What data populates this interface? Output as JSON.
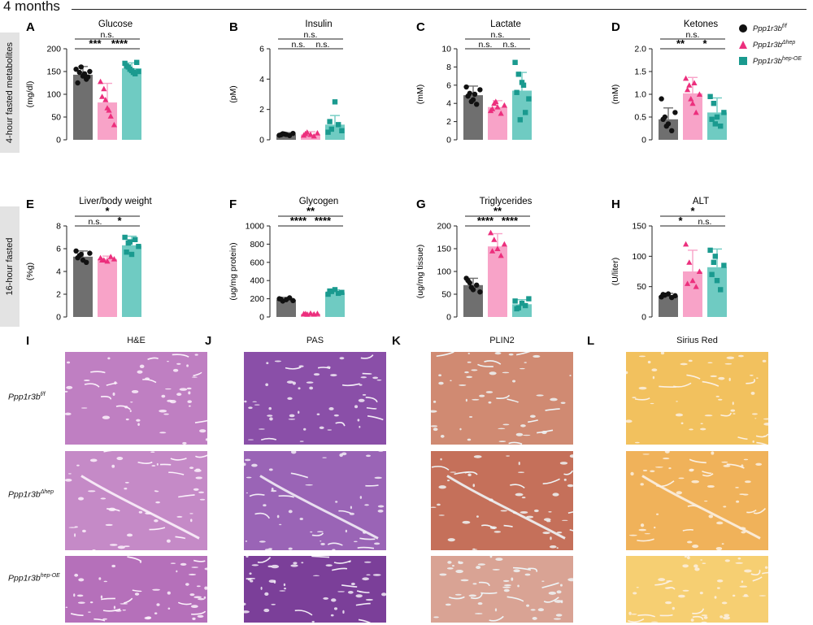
{
  "header": {
    "title": "4 months"
  },
  "row_labels": [
    "4-hour fasted metabolites",
    "16-hour fasted"
  ],
  "legend": [
    {
      "base": "Ppp1r3b",
      "sup": "f/f",
      "shape": "circle",
      "color": "#111111"
    },
    {
      "base": "Ppp1r3b",
      "sup": "Δhep",
      "shape": "triangle",
      "color": "#ec2f7d"
    },
    {
      "base": "Ppp1r3b",
      "sup": "hep-OE",
      "shape": "square",
      "color": "#1a9a8f"
    }
  ],
  "colors": {
    "bar1": "#6f6f6f",
    "bar2": "#f8a3c8",
    "bar3": "#6fcbc2",
    "dot1": "#111111",
    "dot2": "#ec2f7d",
    "dot3": "#1a9a8f"
  },
  "chart_data": [
    {
      "letter": "A",
      "title": "Glucose",
      "ylabel": "(mg/dl)",
      "type": "bar",
      "categories": [
        "f/f",
        "Δhep",
        "hep-OE"
      ],
      "values": [
        143,
        82,
        157
      ],
      "errors": [
        18,
        42,
        12
      ],
      "ylim": [
        0,
        200
      ],
      "yticks": [
        "0",
        "50",
        "100",
        "150",
        "200"
      ],
      "points": [
        [
          155,
          148,
          140,
          133,
          150,
          125,
          160,
          145,
          138
        ],
        [
          128,
          112,
          70,
          52,
          33,
          95,
          88,
          65
        ],
        [
          168,
          160,
          152,
          145,
          150,
          162,
          155,
          148,
          170
        ]
      ],
      "sig": [
        {
          "a": 0,
          "b": 2,
          "label": "n.s.",
          "level": 1
        },
        {
          "a": 0,
          "b": 1,
          "label": "***",
          "level": 0
        },
        {
          "a": 1,
          "b": 2,
          "label": "****",
          "level": 0
        }
      ]
    },
    {
      "letter": "B",
      "title": "Insulin",
      "ylabel": "(pM)",
      "type": "bar",
      "categories": [
        "f/f",
        "Δhep",
        "hep-OE"
      ],
      "values": [
        0.35,
        0.35,
        1.0
      ],
      "errors": [
        0.12,
        0.18,
        0.6
      ],
      "ylim": [
        0,
        6
      ],
      "yticks": [
        "0",
        "2",
        "4",
        "6"
      ],
      "points": [
        [
          0.3,
          0.4,
          0.35,
          0.28,
          0.42,
          0.33,
          0.38
        ],
        [
          0.3,
          0.5,
          0.35,
          0.25,
          0.45,
          0.4
        ],
        [
          0.5,
          0.7,
          2.5,
          1.0,
          0.6,
          1.2
        ]
      ],
      "sig": [
        {
          "a": 0,
          "b": 2,
          "label": "n.s.",
          "level": 1
        },
        {
          "a": 0,
          "b": 1,
          "label": "n.s.",
          "level": 0
        },
        {
          "a": 1,
          "b": 2,
          "label": "n.s.",
          "level": 0
        }
      ]
    },
    {
      "letter": "C",
      "title": "Lactate",
      "ylabel": "(mM)",
      "type": "bar",
      "categories": [
        "f/f",
        "Δhep",
        "hep-OE"
      ],
      "values": [
        4.9,
        3.6,
        5.4
      ],
      "errors": [
        1.0,
        0.7,
        2.0
      ],
      "ylim": [
        0,
        10
      ],
      "yticks": [
        "0",
        "2",
        "4",
        "6",
        "8",
        "10"
      ],
      "points": [
        [
          5.8,
          5.1,
          4.4,
          3.9,
          5.5,
          4.8,
          4.2,
          5.0
        ],
        [
          3.2,
          4.0,
          3.6,
          2.9,
          3.8,
          3.4,
          4.2
        ],
        [
          8.5,
          7.2,
          6.3,
          3.0,
          4.5,
          5.2,
          2.2,
          6.0
        ]
      ],
      "sig": [
        {
          "a": 0,
          "b": 2,
          "label": "n.s.",
          "level": 1
        },
        {
          "a": 0,
          "b": 1,
          "label": "n.s.",
          "level": 0
        },
        {
          "a": 1,
          "b": 2,
          "label": "n.s.",
          "level": 0
        }
      ]
    },
    {
      "letter": "D",
      "title": "Ketones",
      "ylabel": "(mM)",
      "type": "bar",
      "categories": [
        "f/f",
        "Δhep",
        "hep-OE"
      ],
      "values": [
        0.45,
        1.02,
        0.6
      ],
      "errors": [
        0.25,
        0.35,
        0.32
      ],
      "ylim": [
        0,
        2
      ],
      "yticks": [
        "0",
        "0.5",
        "1.0",
        "1.5",
        "2.0"
      ],
      "points": [
        [
          0.9,
          0.5,
          0.35,
          0.2,
          0.6,
          0.45,
          0.3
        ],
        [
          1.35,
          1.2,
          0.8,
          0.6,
          1.0,
          1.1,
          0.9,
          1.25
        ],
        [
          0.95,
          0.8,
          0.5,
          0.3,
          0.6,
          0.45,
          0.35
        ]
      ],
      "sig": [
        {
          "a": 0,
          "b": 2,
          "label": "n.s.",
          "level": 1
        },
        {
          "a": 0,
          "b": 1,
          "label": "**",
          "level": 0
        },
        {
          "a": 1,
          "b": 2,
          "label": "*",
          "level": 0
        }
      ]
    },
    {
      "letter": "E",
      "title": "Liver/body weight",
      "ylabel": "(%g)",
      "type": "bar",
      "categories": [
        "f/f",
        "Δhep",
        "hep-OE"
      ],
      "values": [
        5.3,
        5.1,
        6.3
      ],
      "errors": [
        0.5,
        0.25,
        0.8
      ],
      "ylim": [
        0,
        8
      ],
      "yticks": [
        "0",
        "2",
        "4",
        "6",
        "8"
      ],
      "points": [
        [
          5.8,
          5.4,
          5.0,
          4.8,
          5.6,
          5.2,
          5.5
        ],
        [
          5.2,
          5.0,
          4.9,
          5.3,
          5.1,
          5.0
        ],
        [
          7.0,
          6.5,
          5.5,
          6.8,
          6.2,
          5.7,
          6.6
        ]
      ],
      "sig": [
        {
          "a": 0,
          "b": 2,
          "label": "*",
          "level": 1
        },
        {
          "a": 0,
          "b": 1,
          "label": "n.s.",
          "level": 0
        },
        {
          "a": 1,
          "b": 2,
          "label": "*",
          "level": 0
        }
      ]
    },
    {
      "letter": "F",
      "title": "Glycogen",
      "ylabel": "(ug/mg protein)",
      "type": "bar",
      "categories": [
        "f/f",
        "Δhep",
        "hep-OE"
      ],
      "values": [
        190,
        35,
        270
      ],
      "errors": [
        25,
        8,
        28
      ],
      "ylim": [
        0,
        1000
      ],
      "yticks": [
        "0",
        "200",
        "400",
        "600",
        "800",
        "1000"
      ],
      "points": [
        [
          200,
          175,
          190,
          210,
          180,
          195
        ],
        [
          35,
          30,
          40,
          32,
          38,
          36
        ],
        [
          250,
          280,
          300,
          260,
          270,
          285
        ]
      ],
      "sig": [
        {
          "a": 0,
          "b": 2,
          "label": "**",
          "level": 1
        },
        {
          "a": 0,
          "b": 1,
          "label": "****",
          "level": 0
        },
        {
          "a": 1,
          "b": 2,
          "label": "****",
          "level": 0
        }
      ]
    },
    {
      "letter": "G",
      "title": "Triglycerides",
      "ylabel": "(ug/mg tissue)",
      "type": "bar",
      "categories": [
        "f/f",
        "Δhep",
        "hep-OE"
      ],
      "values": [
        70,
        155,
        28
      ],
      "errors": [
        15,
        28,
        10
      ],
      "ylim": [
        0,
        200
      ],
      "yticks": [
        "0",
        "50",
        "100",
        "150",
        "200"
      ],
      "points": [
        [
          85,
          75,
          60,
          70,
          55,
          80,
          65
        ],
        [
          185,
          170,
          150,
          135,
          160,
          145
        ],
        [
          35,
          20,
          30,
          25,
          40,
          18
        ]
      ],
      "sig": [
        {
          "a": 0,
          "b": 2,
          "label": "**",
          "level": 1
        },
        {
          "a": 0,
          "b": 1,
          "label": "****",
          "level": 0
        },
        {
          "a": 1,
          "b": 2,
          "label": "****",
          "level": 0
        }
      ]
    },
    {
      "letter": "H",
      "title": "ALT",
      "ylabel": "(U/liter)",
      "type": "bar",
      "categories": [
        "f/f",
        "Δhep",
        "hep-OE"
      ],
      "values": [
        35,
        75,
        82
      ],
      "errors": [
        4,
        35,
        30
      ],
      "ylim": [
        0,
        150
      ],
      "yticks": [
        "0",
        "50",
        "100",
        "150"
      ],
      "points": [
        [
          33,
          36,
          38,
          32,
          35,
          37
        ],
        [
          120,
          90,
          60,
          50,
          75,
          55
        ],
        [
          110,
          90,
          60,
          45,
          85,
          70,
          100
        ]
      ],
      "sig": [
        {
          "a": 0,
          "b": 2,
          "label": "*",
          "level": 1
        },
        {
          "a": 0,
          "b": 1,
          "label": "*",
          "level": 0
        },
        {
          "a": 1,
          "b": 2,
          "label": "n.s.",
          "level": 0
        }
      ]
    }
  ],
  "histology": {
    "columns": [
      {
        "letter": "I",
        "title": "H&E",
        "stain": "he"
      },
      {
        "letter": "J",
        "title": "PAS",
        "stain": "pas"
      },
      {
        "letter": "K",
        "title": "PLIN2",
        "stain": "plin"
      },
      {
        "letter": "L",
        "title": "Sirius Red",
        "stain": "sirius"
      }
    ],
    "rows": [
      {
        "base": "Ppp1r3b",
        "sup": "f/f"
      },
      {
        "base": "Ppp1r3b",
        "sup": "Δhep"
      },
      {
        "base": "Ppp1r3b",
        "sup": "hep-OE"
      }
    ]
  }
}
